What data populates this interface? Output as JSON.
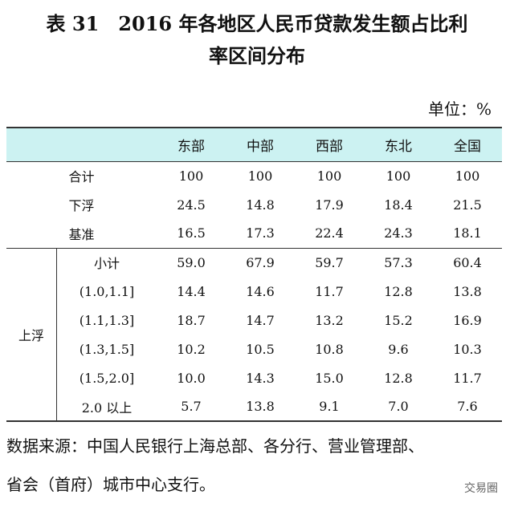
{
  "title": [
    "表 31　2016 年各地区人民币贷款发生额占比利",
    "率区间分布"
  ],
  "unit": "单位：%",
  "table": {
    "columns": [
      "东部",
      "中部",
      "西部",
      "东北",
      "全国"
    ],
    "rows": [
      {
        "label": "合计",
        "values": [
          "100",
          "100",
          "100",
          "100",
          "100"
        ]
      },
      {
        "label": "下浮",
        "values": [
          "24.5",
          "14.8",
          "17.9",
          "18.4",
          "21.5"
        ]
      },
      {
        "label": "基准",
        "values": [
          "16.5",
          "17.3",
          "22.4",
          "24.3",
          "18.1"
        ]
      }
    ],
    "group": {
      "label": "上浮",
      "rows": [
        {
          "label": "小计",
          "values": [
            "59.0",
            "67.9",
            "59.7",
            "57.3",
            "60.4"
          ]
        },
        {
          "label": "(1.0,1.1]",
          "values": [
            "14.4",
            "14.6",
            "11.7",
            "12.8",
            "13.8"
          ]
        },
        {
          "label": "(1.1,1.3]",
          "values": [
            "18.7",
            "14.7",
            "13.2",
            "15.2",
            "16.9"
          ]
        },
        {
          "label": "(1.3,1.5]",
          "values": [
            "10.2",
            "10.5",
            "10.8",
            "9.6",
            "10.3"
          ]
        },
        {
          "label": "(1.5,2.0]",
          "values": [
            "10.0",
            "14.3",
            "15.0",
            "12.8",
            "11.7"
          ]
        },
        {
          "label": "2.0 以上",
          "values": [
            "5.7",
            "13.8",
            "9.1",
            "7.0",
            "7.6"
          ]
        }
      ]
    }
  },
  "source": [
    "数据来源：中国人民银行上海总部、各分行、营业管理部、",
    "省会（首府）城市中心支行。"
  ],
  "watermark": "交易圈"
}
